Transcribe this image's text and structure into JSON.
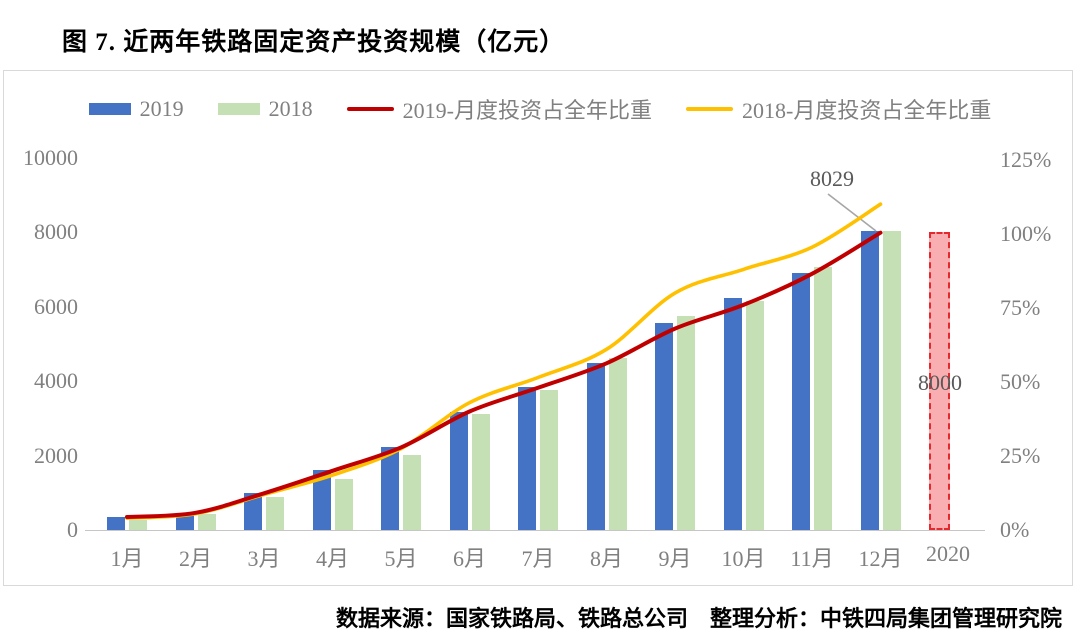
{
  "page": {
    "title": "图 7. 近两年铁路固定资产投资规模（亿元）",
    "footer": "数据来源：国家铁路局、铁路总公司　整理分析：中铁四局集团管理研究院"
  },
  "legend": [
    {
      "label": "2019",
      "type": "bar",
      "color": "#4472c4"
    },
    {
      "label": "2018",
      "type": "bar",
      "color": "#c5e0b4"
    },
    {
      "label": "2019-月度投资占全年比重",
      "type": "line",
      "color": "#c00000"
    },
    {
      "label": "2018-月度投资占全年比重",
      "type": "line",
      "color": "#ffc000"
    }
  ],
  "chart_data": {
    "type": "bar+line",
    "title": "图 7. 近两年铁路固定资产投资规模（亿元）",
    "categories": [
      "1月",
      "2月",
      "3月",
      "4月",
      "5月",
      "6月",
      "7月",
      "8月",
      "9月",
      "10月",
      "11月",
      "12月"
    ],
    "series": [
      {
        "name": "2019",
        "type": "bar",
        "axis": "left",
        "color": "#4472c4",
        "values": [
          350,
          460,
          990,
          1600,
          2230,
          3180,
          3840,
          4500,
          5570,
          6250,
          6900,
          8029
        ]
      },
      {
        "name": "2018",
        "type": "bar",
        "axis": "left",
        "color": "#c5e0b4",
        "values": [
          280,
          420,
          880,
          1370,
          2010,
          3120,
          3760,
          4620,
          5750,
          6160,
          7060,
          8028
        ]
      },
      {
        "name": "2019-月度投资占全年比重",
        "type": "line",
        "axis": "right",
        "unit": "%",
        "color": "#c00000",
        "values": [
          4.4,
          5.8,
          12.4,
          20.0,
          27.9,
          40.0,
          48.0,
          56.3,
          68.0,
          76.0,
          86.5,
          100.4
        ]
      },
      {
        "name": "2018-月度投资占全年比重",
        "type": "line",
        "axis": "right",
        "unit": "%",
        "color": "#ffc000",
        "values": [
          4.0,
          5.5,
          12.0,
          18.5,
          27.5,
          43.0,
          51.5,
          61.0,
          80.0,
          88.0,
          95.5,
          110.0
        ]
      }
    ],
    "extra_bar": {
      "category": "2020",
      "value": 8000,
      "label": "8000",
      "style": "dashed-red",
      "border_color": "#e8272d",
      "fill_color": "rgba(240,65,70,0.42)"
    },
    "annotations": [
      {
        "text": "8029",
        "target": "2019-12月"
      }
    ],
    "left_axis": {
      "ticks": [
        0,
        2000,
        4000,
        6000,
        8000,
        10000
      ],
      "range": [
        0,
        10000
      ]
    },
    "right_axis": {
      "ticks": [
        "0%",
        "25%",
        "50%",
        "75%",
        "100%",
        "125%"
      ],
      "range_pct": [
        0,
        125
      ]
    },
    "grid": false,
    "legend_position": "top"
  },
  "colors": {
    "axis_text": "#808080",
    "axis_line": "#c6c6c6",
    "chart_border": "#d9d9d9",
    "callout_line": "#a6a6a6",
    "annotation_text": "#595959"
  }
}
